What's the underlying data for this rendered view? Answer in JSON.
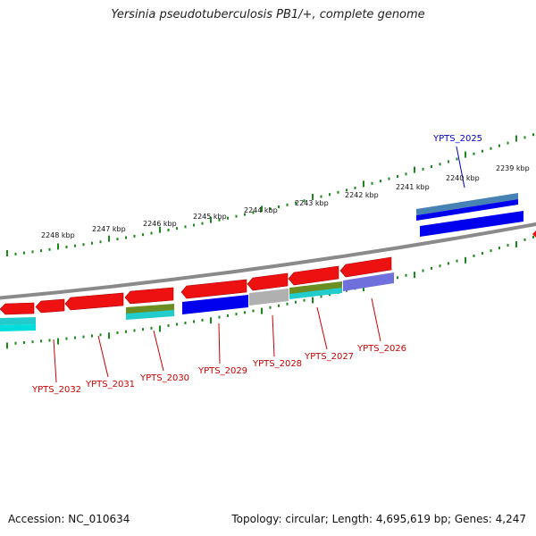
{
  "title": "Yersinia pseudotuberculosis PB1/+, complete genome",
  "footer": {
    "accession": "Accession: NC_010634",
    "summary": "Topology: circular; Length: 4,695,619 bp; Genes: 4,247"
  },
  "colors": {
    "backbone": "#8a8a8a",
    "tick": "#1a8a1a",
    "forward_arrow": "#ee1111",
    "label_red": "#cc0000",
    "label_blue": "#0000cc",
    "cds_blue": "#0000ee",
    "cds_grey": "#b0b0b0",
    "cds_olive": "#6b8e23",
    "cds_cyan": "#22cccc",
    "cds_slate": "#7070dd",
    "cds_steel": "#4682b4"
  },
  "kbp_labels": [
    "2248 kbp",
    "2247 kbp",
    "2246 kbp",
    "2245 kbp",
    "2244 kbp",
    "2243 kbp",
    "2242 kbp",
    "2241 kbp",
    "2240 kbp",
    "2239 kbp"
  ],
  "gene_labels": [
    "YPTS_2032",
    "YPTS_2031",
    "YPTS_2030",
    "YPTS_2029",
    "YPTS_2028",
    "YPTS_2027",
    "YPTS_2026",
    "YPTS_2025"
  ]
}
